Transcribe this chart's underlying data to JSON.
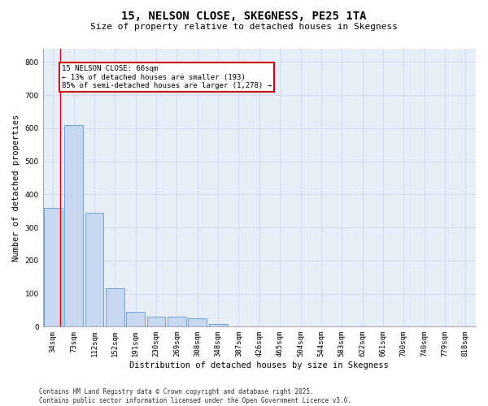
{
  "title": "15, NELSON CLOSE, SKEGNESS, PE25 1TA",
  "subtitle": "Size of property relative to detached houses in Skegness",
  "xlabel": "Distribution of detached houses by size in Skegness",
  "ylabel": "Number of detached properties",
  "bin_labels": [
    "34sqm",
    "73sqm",
    "112sqm",
    "152sqm",
    "191sqm",
    "230sqm",
    "269sqm",
    "308sqm",
    "348sqm",
    "387sqm",
    "426sqm",
    "465sqm",
    "504sqm",
    "544sqm",
    "583sqm",
    "622sqm",
    "661sqm",
    "700sqm",
    "740sqm",
    "779sqm",
    "818sqm"
  ],
  "bar_heights": [
    360,
    610,
    345,
    115,
    45,
    30,
    30,
    25,
    8,
    2,
    2,
    0,
    0,
    0,
    0,
    0,
    0,
    0,
    0,
    0,
    0
  ],
  "bar_color": "#c5d8ef",
  "bar_edge_color": "#5b9bd5",
  "annotation_text": "15 NELSON CLOSE: 66sqm\n← 13% of detached houses are smaller (193)\n85% of semi-detached houses are larger (1,278) →",
  "annotation_box_color": "#ffffff",
  "annotation_border_color": "#cc0000",
  "red_line_color": "#cc0000",
  "ylim": [
    0,
    840
  ],
  "yticks": [
    0,
    100,
    200,
    300,
    400,
    500,
    600,
    700,
    800
  ],
  "grid_color": "#d0d8e8",
  "bg_color": "#e8eef8",
  "footer_line1": "Contains HM Land Registry data © Crown copyright and database right 2025.",
  "footer_line2": "Contains public sector information licensed under the Open Government Licence v3.0.",
  "title_fontsize": 10,
  "subtitle_fontsize": 8,
  "axis_label_fontsize": 7.5,
  "tick_fontsize": 6.5,
  "annotation_fontsize": 6.5,
  "footer_fontsize": 5.5
}
